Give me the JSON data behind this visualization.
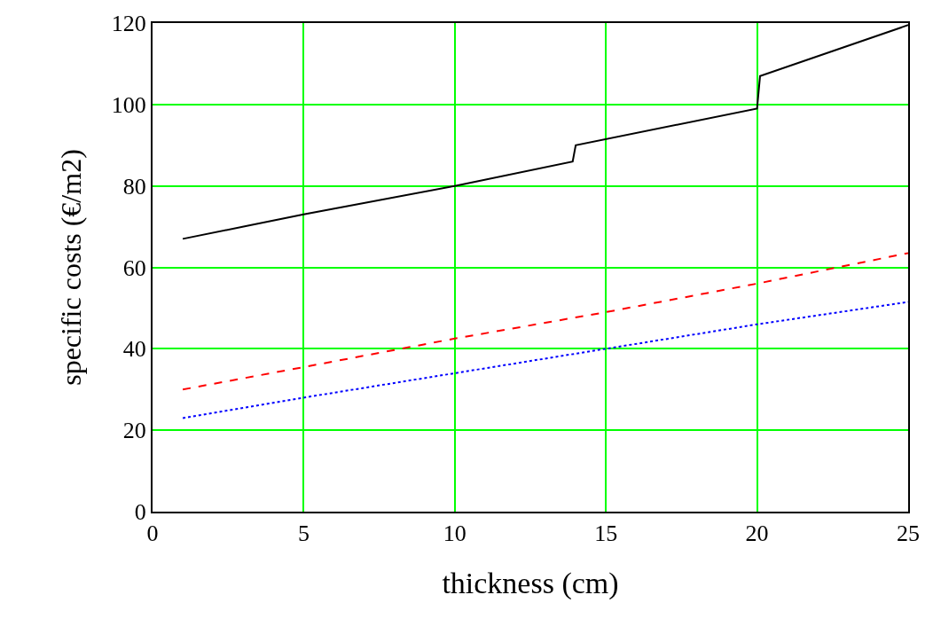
{
  "chart_data": {
    "type": "line",
    "xlabel": "thickness (cm)",
    "ylabel": "specific costs (€/m2)",
    "xlim": [
      0,
      25
    ],
    "xticks": [
      0,
      5,
      10,
      15,
      20,
      25
    ],
    "ylim": [
      0,
      120
    ],
    "yticks": [
      0,
      20,
      40,
      60,
      80,
      100,
      120
    ],
    "grid": true,
    "marker": "none",
    "series": [
      {
        "color": "#000000",
        "line_style": "solid",
        "x": [
          1,
          5,
          10,
          13.9,
          13.9,
          14,
          20,
          20,
          20.1,
          25
        ],
        "values": [
          67,
          73,
          80,
          86,
          86,
          90,
          99,
          99,
          107,
          119.5
        ]
      },
      {
        "color": "#ff0000",
        "line_style": "dashed",
        "x": [
          1,
          5,
          10,
          15,
          20,
          25
        ],
        "values": [
          30,
          35.5,
          42.5,
          49,
          56,
          63.5
        ]
      },
      {
        "color": "#0000ff",
        "line_style": "dotted",
        "x": [
          1,
          5,
          10,
          15,
          20,
          25
        ],
        "values": [
          23,
          28,
          34,
          40,
          46,
          51.5
        ]
      }
    ]
  }
}
